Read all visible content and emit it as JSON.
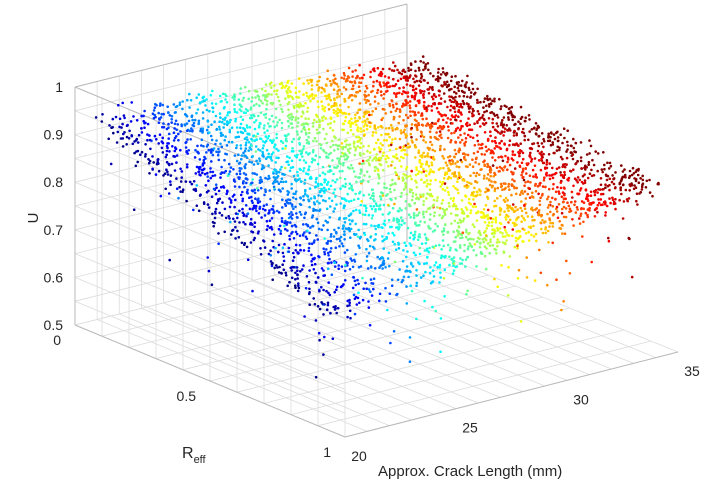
{
  "chart_data": {
    "type": "scatter",
    "subtype": "3d-scatter",
    "xlabel": "Approx. Crack Length (mm)",
    "ylabel_main": "R",
    "ylabel_sub": "eff",
    "zlabel": "U",
    "xlim": [
      20,
      35
    ],
    "ylim": [
      0,
      1
    ],
    "zlim": [
      0.5,
      1
    ],
    "x_ticks": [
      "20",
      "25",
      "30",
      "35"
    ],
    "y_ticks": [
      "0",
      "0.5",
      "1"
    ],
    "z_ticks": [
      "0.5",
      "0.6",
      "0.7",
      "0.8",
      "0.9",
      "1"
    ],
    "colormap": "jet",
    "color_variable": "x",
    "grid": true,
    "cloud_description": [
      {
        "x": 20.0,
        "y": 0.05,
        "z": 0.96
      },
      {
        "x": 20.0,
        "y": 0.95,
        "z": 0.72
      },
      {
        "x": 27.0,
        "y": 0.1,
        "z": 0.95
      },
      {
        "x": 27.0,
        "y": 0.95,
        "z": 0.78
      },
      {
        "x": 35.0,
        "y": 0.2,
        "z": 0.9
      },
      {
        "x": 35.0,
        "y": 0.95,
        "z": 0.83
      }
    ]
  }
}
